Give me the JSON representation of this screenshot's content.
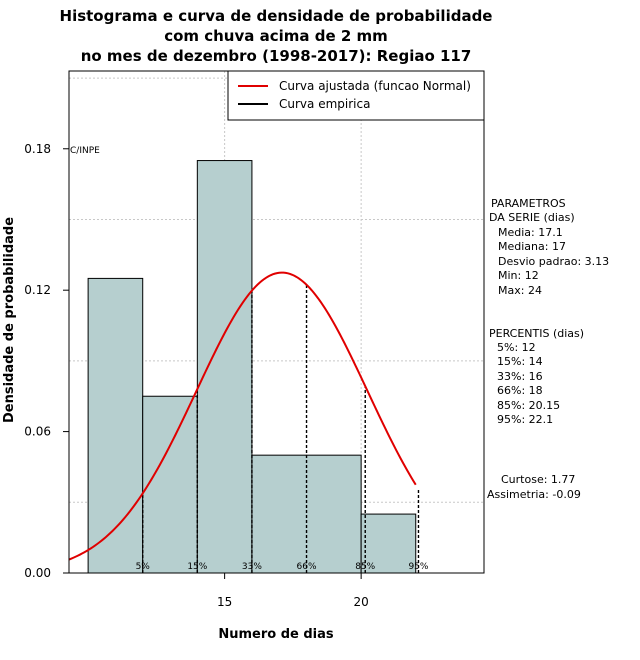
{
  "chart_data": {
    "type": "bar",
    "title_lines": [
      "Histograma e curva de densidade de probabilidade",
      "com chuva acima de 2 mm",
      "no mes de dezembro (1998-2017): Regiao 117"
    ],
    "xlabel": "Numero de dias",
    "ylabel": "Densidade de probabilidade",
    "xlim": [
      9.3,
      24.5
    ],
    "ylim": [
      0.0,
      0.213
    ],
    "x_ticks": [
      15,
      20
    ],
    "y_ticks": [
      0.0,
      0.06,
      0.12,
      0.18
    ],
    "y_tick_labels": [
      "0.00",
      "0.06",
      "0.12",
      "0.18"
    ],
    "grid": true,
    "bins": [
      {
        "start": 10,
        "end": 12,
        "density": 0.125
      },
      {
        "start": 12,
        "end": 14,
        "density": 0.075
      },
      {
        "start": 14,
        "end": 16,
        "density": 0.175
      },
      {
        "start": 16,
        "end": 20,
        "density": 0.05
      },
      {
        "start": 20,
        "end": 22,
        "density": 0.025
      }
    ],
    "normal_fit": {
      "mean": 17.1,
      "sd": 3.13,
      "x_from": 9.3,
      "x_to": 22
    },
    "percentile_lines": [
      {
        "label": "5%",
        "x": 12
      },
      {
        "label": "15%",
        "x": 14
      },
      {
        "label": "33%",
        "x": 16
      },
      {
        "label": "66%",
        "x": 18
      },
      {
        "label": "85%",
        "x": 20.15
      },
      {
        "label": "95%",
        "x": 22.1
      }
    ],
    "legend": {
      "position": "top-right",
      "entries": [
        {
          "label": "Curva ajustada (funcao Normal)",
          "color": "#e00000"
        },
        {
          "label": "Curva empirica",
          "color": "#000000"
        }
      ]
    },
    "watermark": "C/INPE",
    "colors": {
      "bar_fill": "#b6cfcf",
      "curve": "#e00000"
    },
    "parameters": {
      "heading": [
        "PARAMETROS",
        "DA SERIE (dias)"
      ],
      "lines": [
        "Media: 17.1",
        "Mediana: 17",
        "Desvio padrao: 3.13",
        "Min: 12",
        "Max: 24"
      ]
    },
    "percentis": {
      "heading": "PERCENTIS (dias)",
      "lines": [
        "5%: 12",
        "15%: 14",
        "33%: 16",
        "66%: 18",
        "85%: 20.15",
        "95%: 22.1"
      ]
    },
    "shape": {
      "lines": [
        "Curtose: 1.77",
        "Assimetria: -0.09"
      ]
    }
  }
}
